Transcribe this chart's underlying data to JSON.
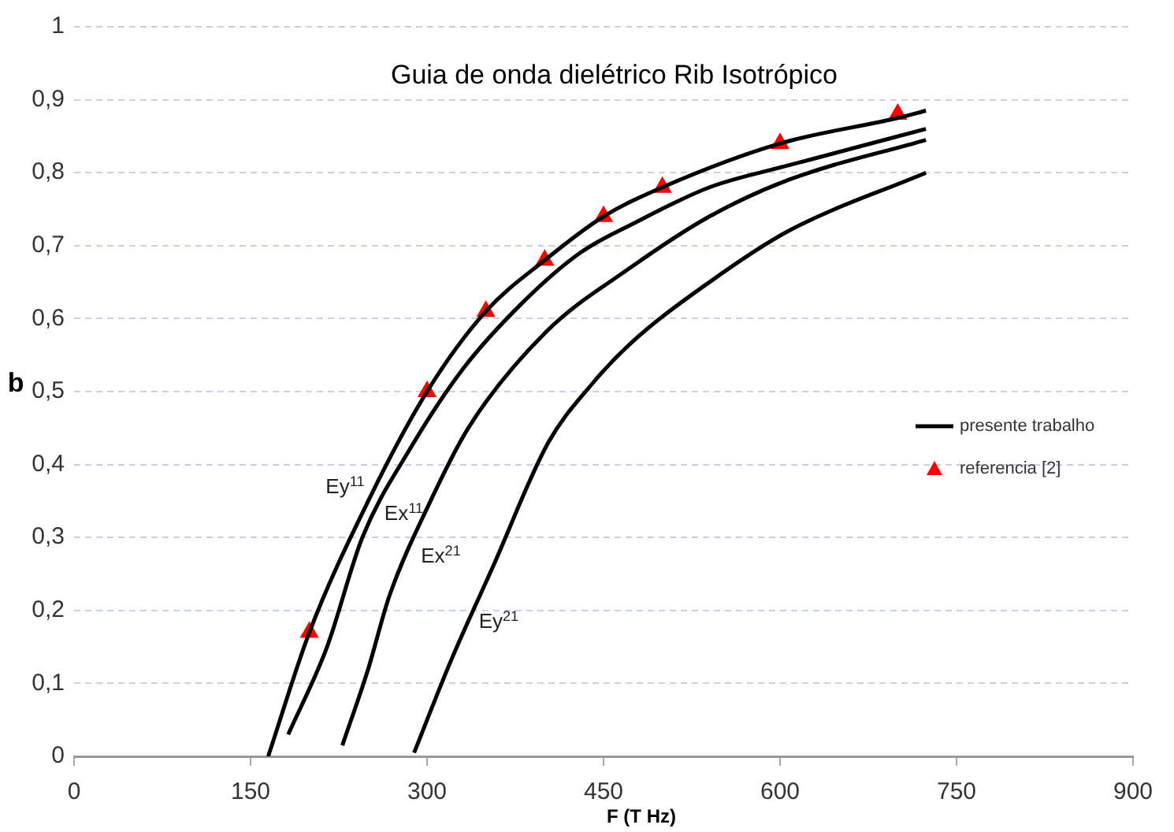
{
  "chart_data": {
    "type": "line",
    "title": "Guia de onda dielétrico Rib Isotrópico",
    "xlabel": "F (T Hz)",
    "ylabel": "b",
    "xlim": [
      0,
      900
    ],
    "xticks": [
      0,
      150,
      300,
      450,
      600,
      750,
      900
    ],
    "ylim": [
      0,
      1
    ],
    "yticks": [
      0,
      {
        "value": 0.1,
        "label": "0,1"
      },
      {
        "value": 0.2,
        "label": "0,2"
      },
      {
        "value": 0.3,
        "label": "0,3"
      },
      {
        "value": 0.4,
        "label": "0,4"
      },
      {
        "value": 0.5,
        "label": "0,5"
      },
      {
        "value": 0.6,
        "label": "0,6"
      },
      {
        "value": 0.7,
        "label": "0,7"
      },
      {
        "value": 0.8,
        "label": "0,8"
      },
      {
        "value": 0.9,
        "label": "0,9"
      },
      1
    ],
    "grid": "y",
    "legend": "right",
    "marker": "none",
    "line_style": "solid",
    "series": [
      {
        "name": "presente trabalho",
        "color": "#000000",
        "x": [
          165,
          200,
          250,
          300,
          350,
          400,
          450,
          500,
          600,
          700,
          724
        ],
        "values": [
          0,
          0.17,
          0.35,
          0.5,
          0.61,
          0.68,
          0.74,
          0.78,
          0.84,
          0.875,
          0.885
        ]
      },
      {
        "color": "#000000",
        "x": [
          182,
          215,
          245,
          285,
          330,
          380,
          430,
          475,
          540,
          607,
          724
        ],
        "values": [
          0.03,
          0.15,
          0.3,
          0.42,
          0.53,
          0.62,
          0.69,
          0.73,
          0.78,
          0.81,
          0.86
        ]
      },
      {
        "color": "#000000",
        "x": [
          228,
          250,
          268,
          300,
          335,
          400,
          473,
          540,
          607,
          724
        ],
        "values": [
          0.015,
          0.12,
          0.22,
          0.34,
          0.45,
          0.58,
          0.67,
          0.74,
          0.79,
          0.845
        ]
      },
      {
        "color": "#000000",
        "x": [
          289,
          320,
          356,
          403,
          440,
          473,
          540,
          607,
          724
        ],
        "values": [
          0.005,
          0.13,
          0.26,
          0.43,
          0.51,
          0.566,
          0.65,
          0.72,
          0.8
        ]
      },
      {
        "name": "referencia [2]",
        "type": "scatter",
        "marker": "triangle",
        "color": "#ff0000",
        "x": [
          200,
          300,
          350,
          400,
          450,
          500,
          600,
          700
        ],
        "values": [
          0.17,
          0.5,
          0.61,
          0.68,
          0.74,
          0.78,
          0.84,
          0.88
        ]
      }
    ],
    "annotations": [
      "Ey$^{11}$",
      "Ex$^{11}$",
      "Ex$^{21}$",
      "Ey$^{21}$"
    ]
  }
}
